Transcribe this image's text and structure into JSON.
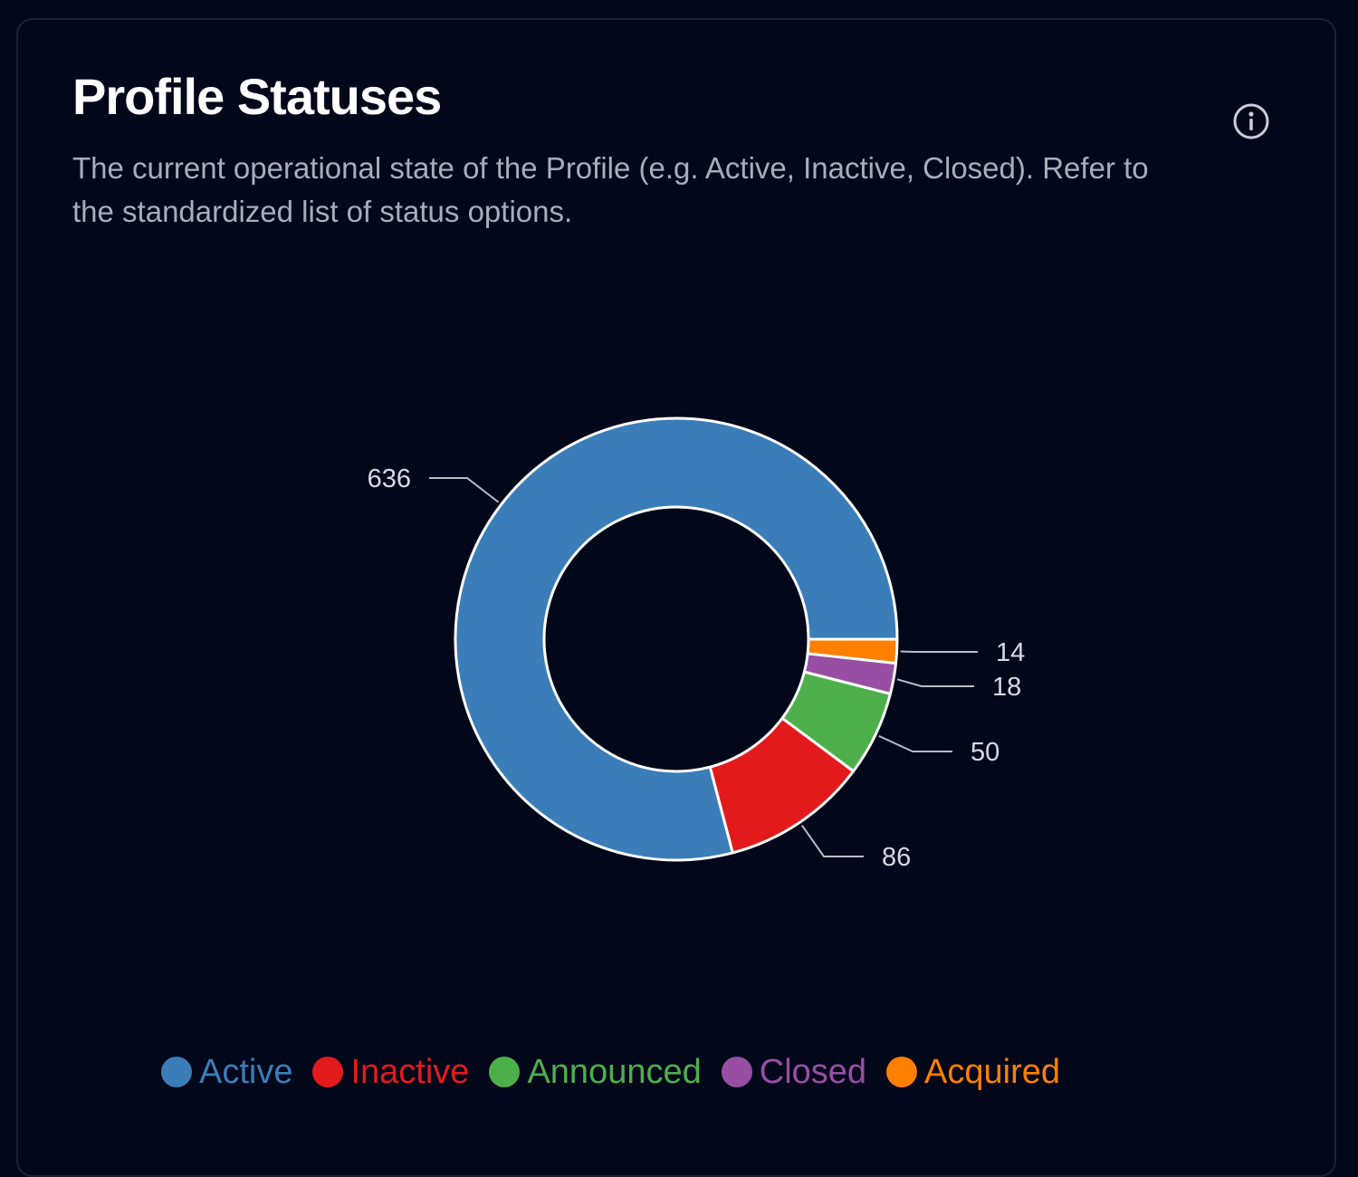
{
  "card": {
    "title": "Profile Statuses",
    "subtitle": "The current operational state of the Profile (e.g. Active, Inactive, Closed). Refer to the standardized list of status options.",
    "info_icon": "info-circle-icon"
  },
  "chart_data": {
    "type": "pie",
    "variant": "donut",
    "title": "",
    "categories": [
      "Active",
      "Inactive",
      "Announced",
      "Closed",
      "Acquired"
    ],
    "values": [
      636,
      86,
      50,
      18,
      14
    ],
    "colors": [
      "#3a7db9",
      "#e31a1c",
      "#4daf4a",
      "#984ea3",
      "#ff7f00"
    ],
    "value_labels": [
      "636",
      "86",
      "50",
      "18",
      "14"
    ],
    "legend": {
      "position": "bottom",
      "items": [
        {
          "label": "Active",
          "color": "#3a7db9"
        },
        {
          "label": "Inactive",
          "color": "#e31a1c"
        },
        {
          "label": "Announced",
          "color": "#4daf4a"
        },
        {
          "label": "Closed",
          "color": "#984ea3"
        },
        {
          "label": "Acquired",
          "color": "#ff7f00"
        }
      ]
    }
  }
}
